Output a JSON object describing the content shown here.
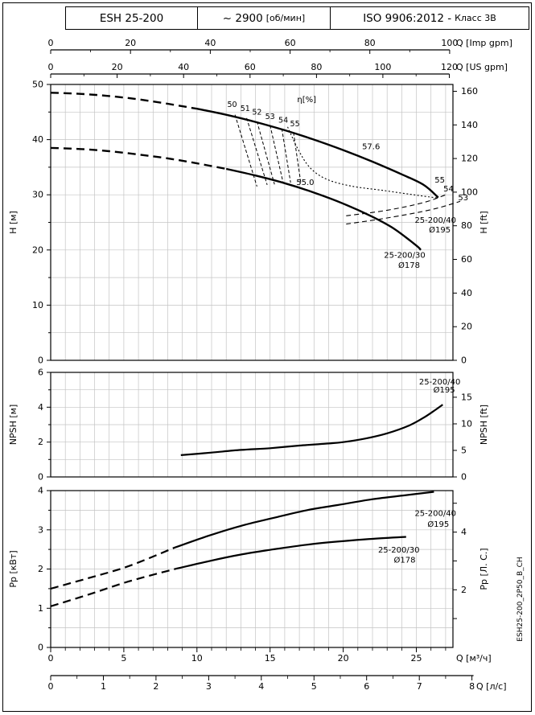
{
  "header": {
    "model": "ESH 25-200",
    "speed_value": "~ 2900",
    "speed_unit": "[об/мин]",
    "standard_main": "ISO 9906:2012 -",
    "standard_sub": "Класс 3В"
  },
  "side_code": "ESH25-200_2P50_B_CH",
  "top_axes": [
    {
      "label": "Q [Imp gpm]",
      "ticks": [
        0,
        20,
        40,
        60,
        80,
        100
      ],
      "m3h_per_unit": 0.27276,
      "minor_step": 10
    },
    {
      "label": "Q [US gpm]",
      "ticks": [
        0,
        20,
        40,
        60,
        80,
        100,
        120
      ],
      "m3h_per_unit": 0.22712,
      "minor_step": 10
    }
  ],
  "bottom_axes": [
    {
      "label": "Q [м³/ч]",
      "ticks": [
        0,
        5,
        10,
        15,
        20,
        25
      ],
      "m3h_per_unit": 1,
      "minor_step": 1
    },
    {
      "label": "Q [л/с]",
      "ticks": [
        0,
        1,
        2,
        3,
        4,
        5,
        6,
        7,
        8
      ],
      "m3h_per_unit": 3.6,
      "minor_step": 0.5
    }
  ],
  "chart_data": [
    {
      "id": "head",
      "type": "line",
      "title": "Head vs flow curves",
      "xlabel": "Q [м³/ч]",
      "ylabel_left": "H [м]",
      "ylabel_right": "H [ft]",
      "xlim": [
        0,
        27.5
      ],
      "ylim": [
        0,
        50
      ],
      "grid": true,
      "ygrid_step": 5,
      "yticks_left": [
        0,
        10,
        20,
        30,
        40,
        50
      ],
      "yticks_right": [
        0,
        20,
        40,
        60,
        80,
        100,
        120,
        140,
        160
      ],
      "right_factor": 0.3048,
      "series": [
        {
          "name": "25-200/40 Ø195",
          "role": "pump-curve",
          "width": 2.4,
          "dash_until": 8.8,
          "points": [
            [
              0,
              48.5
            ],
            [
              2,
              48.3
            ],
            [
              4,
              47.9
            ],
            [
              6,
              47.3
            ],
            [
              8,
              46.5
            ],
            [
              10,
              45.6
            ],
            [
              12,
              44.5
            ],
            [
              14,
              43.2
            ],
            [
              16,
              41.7
            ],
            [
              18,
              40.0
            ],
            [
              20,
              38.1
            ],
            [
              22,
              36.0
            ],
            [
              24,
              33.7
            ],
            [
              25.5,
              31.8
            ],
            [
              26.5,
              29.5
            ]
          ]
        },
        {
          "name": "25-200/30 Ø178",
          "role": "pump-curve",
          "width": 2.4,
          "dash_until": 11,
          "points": [
            [
              0,
              38.5
            ],
            [
              2,
              38.3
            ],
            [
              4,
              37.9
            ],
            [
              6,
              37.3
            ],
            [
              8,
              36.6
            ],
            [
              10,
              35.7
            ],
            [
              12,
              34.7
            ],
            [
              14,
              33.5
            ],
            [
              16,
              32.1
            ],
            [
              18,
              30.4
            ],
            [
              20,
              28.4
            ],
            [
              22,
              26.0
            ],
            [
              23.5,
              23.8
            ],
            [
              25,
              20.8
            ],
            [
              25.3,
              20.0
            ]
          ]
        },
        {
          "name": "efficiency 55 contour",
          "role": "contour",
          "width": 1.1,
          "dash": "2 2.5",
          "points": [
            [
              16.2,
              42.3
            ],
            [
              16.9,
              38.3
            ],
            [
              17.7,
              35.0
            ],
            [
              18.8,
              32.9
            ],
            [
              20.5,
              31.6
            ],
            [
              22.7,
              30.8
            ],
            [
              25.1,
              29.9
            ],
            [
              26.5,
              29.4
            ]
          ]
        },
        {
          "name": "efficiency 54 contour",
          "role": "contour",
          "width": 1.1,
          "dash": "6 4",
          "points": [
            [
              20.2,
              26.2
            ],
            [
              23,
              27.2
            ],
            [
              25.5,
              28.6
            ],
            [
              27.0,
              30.0
            ]
          ]
        },
        {
          "name": "efficiency 53 contour",
          "role": "contour",
          "width": 1.1,
          "dash": "6 4",
          "points": [
            [
              20.2,
              24.7
            ],
            [
              23,
              25.8
            ],
            [
              26,
              27.3
            ],
            [
              28.0,
              28.8
            ]
          ]
        }
      ],
      "fan_lines": [
        {
          "label": "50",
          "from": [
            12.6,
            44.5
          ],
          "to": [
            14.1,
            31.5
          ],
          "label_at": [
            12.4,
            45.9
          ]
        },
        {
          "label": "51",
          "from": [
            13.4,
            43.9
          ],
          "to": [
            14.8,
            31.8
          ],
          "label_at": [
            13.3,
            45.2
          ]
        },
        {
          "label": "52",
          "from": [
            14.1,
            43.3
          ],
          "to": [
            15.3,
            31.9
          ],
          "label_at": [
            14.1,
            44.5
          ]
        },
        {
          "label": "53",
          "from": [
            15.0,
            42.6
          ],
          "to": [
            15.9,
            32.1
          ],
          "label_at": [
            15.0,
            43.7
          ]
        },
        {
          "label": "54",
          "from": [
            15.8,
            42.0
          ],
          "to": [
            16.4,
            32.2
          ],
          "label_at": [
            15.9,
            43.1
          ]
        },
        {
          "label": "55",
          "from": [
            16.6,
            41.3
          ],
          "to": [
            17.1,
            32.2
          ],
          "label_at": [
            16.7,
            42.4
          ]
        }
      ],
      "annotations": [
        {
          "text": "η[%]",
          "at": [
            17.5,
            46.8
          ]
        },
        {
          "text": "57.6",
          "at": [
            21.9,
            38.3
          ]
        },
        {
          "text": "55.0",
          "at": [
            17.4,
            31.8
          ]
        },
        {
          "text": "55",
          "at": [
            26.6,
            32.2
          ]
        },
        {
          "text": "54",
          "at": [
            27.2,
            30.6
          ]
        },
        {
          "text": "53",
          "at": [
            28.2,
            29.0
          ]
        },
        {
          "text": "25-200/40",
          "at": [
            26.3,
            24.9
          ]
        },
        {
          "text": "Ø195",
          "at": [
            26.6,
            23.2
          ]
        },
        {
          "text": "25-200/30",
          "at": [
            24.2,
            18.6
          ]
        },
        {
          "text": "Ø178",
          "at": [
            24.5,
            16.8
          ]
        }
      ]
    },
    {
      "id": "npsh",
      "type": "line",
      "title": "NPSH vs flow",
      "xlabel": "Q [м³/ч]",
      "ylabel_left": "NPSH [м]",
      "ylabel_right": "NPSH [ft]",
      "xlim": [
        0,
        27.5
      ],
      "ylim": [
        0,
        6
      ],
      "grid": true,
      "ygrid_step": 1,
      "yticks_left": [
        0,
        2,
        4,
        6
      ],
      "yticks_right": [
        0,
        5,
        10,
        15
      ],
      "right_factor": 0.3048,
      "series": [
        {
          "name": "25-200/40 Ø195",
          "role": "pump-curve",
          "width": 2.2,
          "points": [
            [
              8.9,
              1.25
            ],
            [
              11,
              1.4
            ],
            [
              13,
              1.55
            ],
            [
              15,
              1.65
            ],
            [
              17,
              1.8
            ],
            [
              19,
              1.92
            ],
            [
              20,
              2.0
            ],
            [
              21.5,
              2.2
            ],
            [
              23,
              2.5
            ],
            [
              24.5,
              2.95
            ],
            [
              25.5,
              3.4
            ],
            [
              26.3,
              3.85
            ],
            [
              26.8,
              4.15
            ]
          ]
        }
      ],
      "annotations": [
        {
          "text": "25-200/40",
          "at": [
            26.6,
            5.3
          ]
        },
        {
          "text": "Ø195",
          "at": [
            26.9,
            4.85
          ]
        }
      ]
    },
    {
      "id": "power",
      "type": "line",
      "title": "Power vs flow",
      "xlabel": "Q [м³/ч]",
      "ylabel_left": "Pр [кВт]",
      "ylabel_right": "Pр [Л. С.]",
      "xlim": [
        0,
        27.5
      ],
      "ylim": [
        0,
        4
      ],
      "grid": true,
      "ygrid_step": 0.5,
      "yticks_left": [
        0,
        1,
        2,
        3,
        4
      ],
      "yticks_right": [
        1,
        2,
        3,
        4,
        5
      ],
      "yticks_right_labels": [
        2,
        4
      ],
      "right_factor": 0.7355,
      "series": [
        {
          "name": "25-200/40 Ø195",
          "role": "pump-curve",
          "width": 2.2,
          "dash_until": 8.5,
          "points": [
            [
              0,
              1.5
            ],
            [
              2.6,
              1.77
            ],
            [
              5.3,
              2.07
            ],
            [
              8.5,
              2.55
            ],
            [
              10.8,
              2.85
            ],
            [
              13,
              3.1
            ],
            [
              15.2,
              3.3
            ],
            [
              17.5,
              3.5
            ],
            [
              19.6,
              3.63
            ],
            [
              22,
              3.78
            ],
            [
              24.2,
              3.88
            ],
            [
              26.2,
              3.97
            ]
          ]
        },
        {
          "name": "25-200/30 Ø178",
          "role": "pump-curve",
          "width": 2.2,
          "dash_until": 8.5,
          "points": [
            [
              0,
              1.05
            ],
            [
              2.6,
              1.35
            ],
            [
              5.3,
              1.68
            ],
            [
              8.5,
              2.0
            ],
            [
              10.8,
              2.2
            ],
            [
              13,
              2.37
            ],
            [
              15.2,
              2.5
            ],
            [
              17.5,
              2.62
            ],
            [
              19.6,
              2.7
            ],
            [
              22,
              2.77
            ],
            [
              24.3,
              2.82
            ]
          ]
        }
      ],
      "annotations": [
        {
          "text": "25-200/40",
          "at": [
            26.3,
            3.35
          ]
        },
        {
          "text": "Ø195",
          "at": [
            26.5,
            3.08
          ]
        },
        {
          "text": "25-200/30",
          "at": [
            23.8,
            2.42
          ]
        },
        {
          "text": "Ø178",
          "at": [
            24.2,
            2.16
          ]
        }
      ]
    }
  ]
}
